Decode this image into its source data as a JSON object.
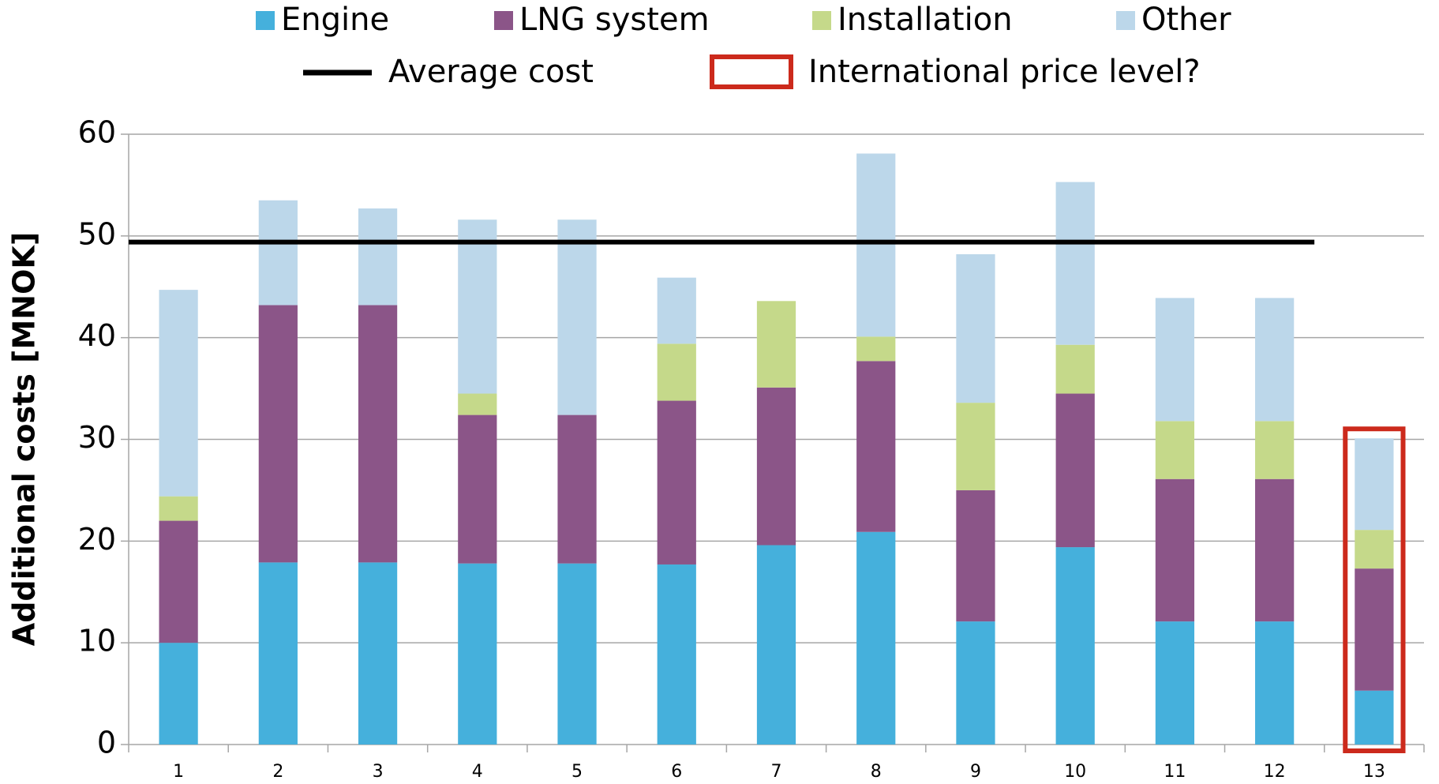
{
  "chart_data": {
    "type": "stacked_bar",
    "y_label": "Additional costs [MNOK]",
    "categories": [
      "1",
      "2",
      "3",
      "4",
      "5",
      "6",
      "7",
      "8",
      "9",
      "10",
      "11",
      "12",
      "13"
    ],
    "series": [
      {
        "name": "Engine",
        "color": "#45b0dc",
        "values": [
          10,
          17.9,
          17.9,
          17.8,
          17.8,
          17.7,
          19.6,
          20.9,
          12.1,
          19.4,
          12.1,
          12.1,
          5.3
        ]
      },
      {
        "name": "LNG system",
        "color": "#8b5588",
        "values": [
          12,
          25.3,
          25.3,
          14.6,
          14.6,
          16.1,
          15.5,
          16.8,
          12.9,
          15.1,
          14.0,
          14.0,
          12.0
        ]
      },
      {
        "name": "Installation",
        "color": "#c5d98a",
        "values": [
          2.4,
          0,
          0,
          2.1,
          0,
          5.6,
          8.5,
          2.4,
          8.6,
          4.8,
          5.7,
          5.7,
          3.8
        ]
      },
      {
        "name": "Other",
        "color": "#bcd7ea",
        "values": [
          20.3,
          10.3,
          9.5,
          17.1,
          19.2,
          6.5,
          0,
          18.0,
          14.6,
          16.0,
          12.1,
          12.1,
          9.0
        ]
      }
    ],
    "average": {
      "name": "Average cost",
      "value": 49.4,
      "color": "#000000"
    },
    "highlight": {
      "name": "International price level?",
      "color": "#cc2a1c"
    },
    "ylim": [
      0,
      60
    ],
    "yticks": [
      0,
      10,
      20,
      30,
      40,
      50,
      60
    ],
    "grid": true
  }
}
